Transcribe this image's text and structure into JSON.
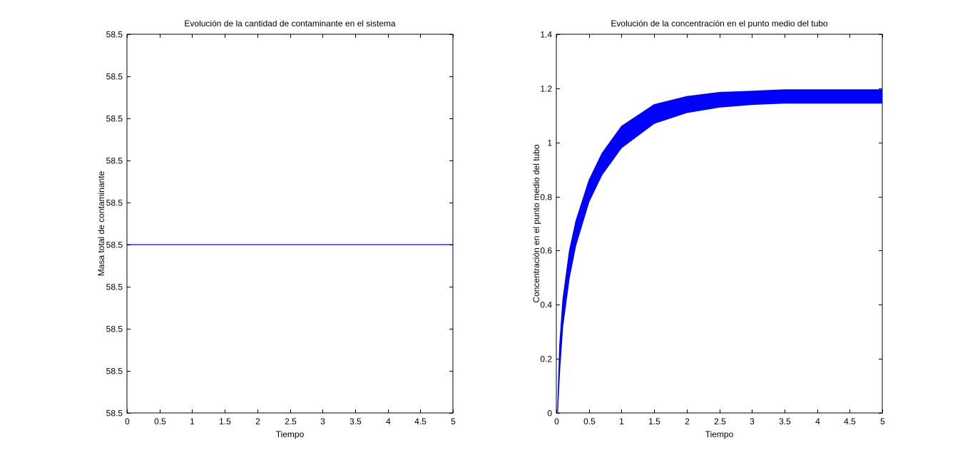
{
  "chart_data": [
    {
      "type": "line",
      "title": "Evolución de la cantidad de contaminante en el sistema",
      "xlabel": "Tiempo",
      "ylabel": "Masa total de contaminante",
      "xlim": [
        0,
        5
      ],
      "ylim": [
        0,
        9
      ],
      "grid": false,
      "x_ticks": [
        0,
        0.5,
        1,
        1.5,
        2,
        2.5,
        3,
        3.5,
        4,
        4.5,
        5
      ],
      "x_tick_labels": [
        "0",
        "0.5",
        "1",
        "1.5",
        "2",
        "2.5",
        "3",
        "3.5",
        "4",
        "4.5",
        "5"
      ],
      "y_ticks": [
        0,
        1,
        2,
        3,
        4,
        5,
        6,
        7,
        8,
        9
      ],
      "y_tick_labels": [
        "58.5",
        "58.5",
        "58.5",
        "58.5",
        "58.5",
        "58.5",
        "58.5",
        "58.5",
        "58.5",
        "58.5"
      ],
      "color": "#0000ff",
      "series": [
        {
          "x": [
            0,
            5
          ],
          "values": [
            4.0,
            4.0
          ]
        }
      ]
    },
    {
      "type": "area",
      "title": "Evolución de la concentración en el punto medio del tubo",
      "xlabel": "Tiempo",
      "ylabel": "Concentración en el punto medio del tubo",
      "xlim": [
        0,
        5
      ],
      "ylim": [
        0,
        1.4
      ],
      "grid": false,
      "x_ticks": [
        0,
        0.5,
        1,
        1.5,
        2,
        2.5,
        3,
        3.5,
        4,
        4.5,
        5
      ],
      "x_tick_labels": [
        "0",
        "0.5",
        "1",
        "1.5",
        "2",
        "2.5",
        "3",
        "3.5",
        "4",
        "4.5",
        "5"
      ],
      "y_ticks": [
        0,
        0.2,
        0.4,
        0.6,
        0.8,
        1,
        1.2,
        1.4
      ],
      "y_tick_labels": [
        "0",
        "0.2",
        "0.4",
        "0.6",
        "0.8",
        "1",
        "1.2",
        "1.4"
      ],
      "color": "#0000ff",
      "x": [
        0.02,
        0.05,
        0.1,
        0.2,
        0.3,
        0.5,
        0.7,
        1,
        1.5,
        2,
        2.5,
        3,
        3.5,
        4,
        4.5,
        5
      ],
      "series": [
        {
          "values": [
            0.02,
            0.25,
            0.42,
            0.6,
            0.71,
            0.86,
            0.96,
            1.06,
            1.14,
            1.17,
            1.185,
            1.19,
            1.195,
            1.195,
            1.195,
            1.195
          ]
        },
        {
          "values": [
            0.0,
            0.15,
            0.32,
            0.5,
            0.62,
            0.78,
            0.88,
            0.98,
            1.07,
            1.11,
            1.13,
            1.14,
            1.145,
            1.145,
            1.145,
            1.145
          ]
        }
      ]
    }
  ]
}
